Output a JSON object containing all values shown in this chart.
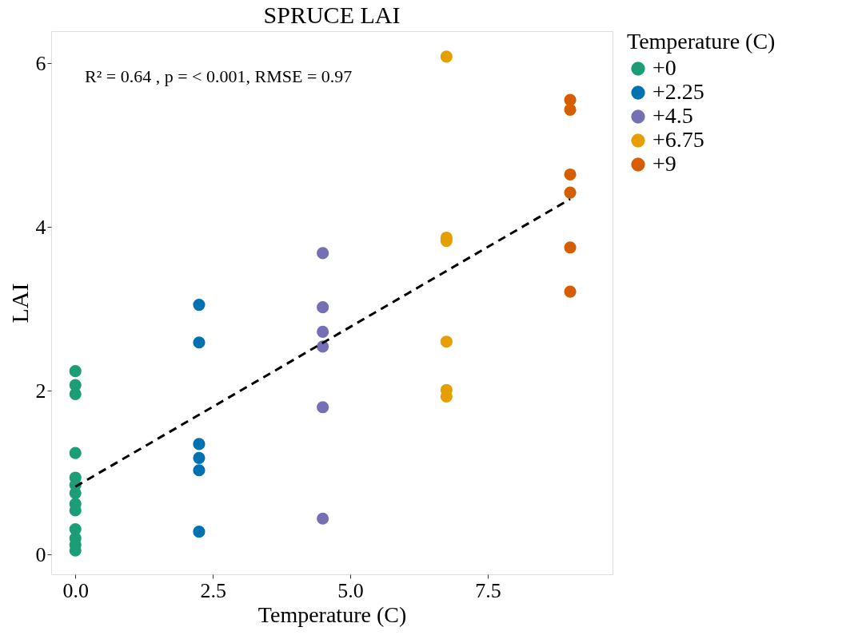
{
  "chart_data": {
    "type": "scatter",
    "title": "SPRUCE LAI",
    "xlabel": "Temperature (C)",
    "ylabel": "LAI",
    "legend_title": "Temperature (C)",
    "annotations": [
      "R² = 0.64   , p = < 0.001, RMSE = 0.97"
    ],
    "xlim": [
      -0.44,
      9.77
    ],
    "ylim": [
      -0.24,
      6.39
    ],
    "xticks": [
      {
        "value": 0,
        "label": "0.0"
      },
      {
        "value": 2.5,
        "label": "2.5"
      },
      {
        "value": 5,
        "label": "5.0"
      },
      {
        "value": 7.5,
        "label": "7.5"
      }
    ],
    "yticks": [
      0,
      2,
      4,
      6
    ],
    "grid": false,
    "legend": "right",
    "marker": "circle",
    "series": [
      {
        "name": "+0",
        "color": "#1b9e77",
        "x": [
          0,
          0,
          0,
          0,
          0,
          0,
          0,
          0,
          0,
          0,
          0,
          0,
          0
        ],
        "values": [
          2.24,
          2.07,
          1.96,
          1.24,
          0.94,
          0.85,
          0.75,
          0.62,
          0.54,
          0.31,
          0.2,
          0.12,
          0.05
        ]
      },
      {
        "name": "+2.25",
        "color": "#0072b2",
        "x": [
          2.25,
          2.25,
          2.25,
          2.25,
          2.25,
          2.25
        ],
        "values": [
          3.05,
          2.59,
          1.35,
          1.18,
          1.03,
          0.28
        ]
      },
      {
        "name": "+4.5",
        "color": "#7570b3",
        "x": [
          4.5,
          4.5,
          4.5,
          4.5,
          4.5,
          4.5
        ],
        "values": [
          3.68,
          3.02,
          2.72,
          2.54,
          1.8,
          0.44
        ]
      },
      {
        "name": "+6.75",
        "color": "#e69f00",
        "x": [
          6.75,
          6.75,
          6.75,
          6.75,
          6.75,
          6.75
        ],
        "values": [
          6.08,
          3.87,
          3.83,
          2.6,
          2.01,
          1.93
        ]
      },
      {
        "name": "+9",
        "color": "#d55e00",
        "x": [
          9,
          9,
          9,
          9,
          9,
          9
        ],
        "values": [
          5.55,
          5.43,
          4.64,
          4.42,
          3.75,
          3.21
        ]
      },
      {
        "type": "line",
        "color": "#000000",
        "line_style": "dashed",
        "marker": "none",
        "x": [
          0,
          9
        ],
        "values": [
          0.83,
          4.34
        ]
      }
    ]
  }
}
